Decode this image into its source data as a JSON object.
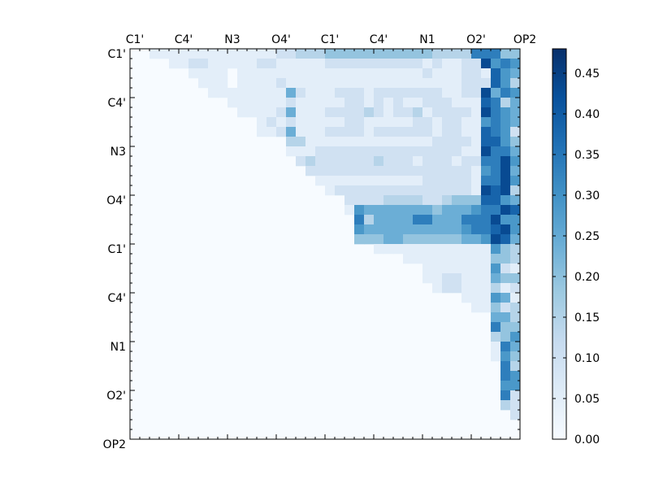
{
  "chart_data": {
    "type": "heatmap",
    "title": "",
    "xlabel": "",
    "ylabel": "",
    "tick_labels": [
      "C1'",
      "C4'",
      "N3",
      "O4'",
      "C1'",
      "C4'",
      "N1",
      "O2'",
      "OP2"
    ],
    "colorbar": {
      "min": 0.0,
      "max": 0.48,
      "ticks": [
        "0.00",
        "0.05",
        "0.10",
        "0.15",
        "0.20",
        "0.25",
        "0.30",
        "0.35",
        "0.40",
        "0.45"
      ],
      "colormap": "Blues"
    },
    "matrix_size": 40,
    "rows": [
      "00111111111111122333444444444443333777444",
      "0000112211111221111122222222221211229676",
      "0000001111011111111111111111112111221865",
      "0000000111011112111111111111111111222863",
      "0000000011111111521112221222222211229576",
      "0000000000111111211111221212112221118735",
      "0000000000011112511122223212231222219765",
      "0000000000000121211111221111122122116765",
      "0000000000000112511122221222222122118762",
      "0000000000000000331111111111111222218864",
      "0000000000000000111222222222222222119775",
      "0000000000000000023222222322212221227796",
      "0000000000000000002222222222222222216795",
      "0000000000000000000111111111112222217796",
      "0000000000000000000012222222222222219893",
      "0000000000000000000000222233332234448865",
      "0000000000000000000000165555555455567798",
      "0000000000000000000000073555577555777966",
      "0000000000000000000000065555555555677896",
      "0000000000000000000000044455444444556985",
      "0000000000000000000000000111111111111643",
      "0000000000000000000000000000111111111443",
      "0000000000000000000000000000001111111621",
      "0000000000000000000000000000001122111544",
      "0000000000000000000000000000000122111312",
      "0000000000000000000000000000000000111651",
      "0000000000000000000000000000000000011423",
      "0000000000000000000000000000000000000553",
      "0000000000000000000000000000000000000744",
      "0000000000000000000000000000000000000346",
      "0000000000000000000000000000000000000175",
      "0000000000000000000000000000000000000164",
      "0000000000000000000000000000000000000073",
      "0000000000000000000000000000000000000076",
      "0000000000000000000000000000000000000066",
      "0000000000000000000000000000000000000072",
      "0000000000000000000000000000000000000032",
      "0000000000000000000000000000000000000002",
      "0000000000000000000000000000000000000000",
      "0000000000000000000000000000000000000000"
    ],
    "value_step": 0.048,
    "grid": false,
    "legend": "colorbar-right"
  }
}
